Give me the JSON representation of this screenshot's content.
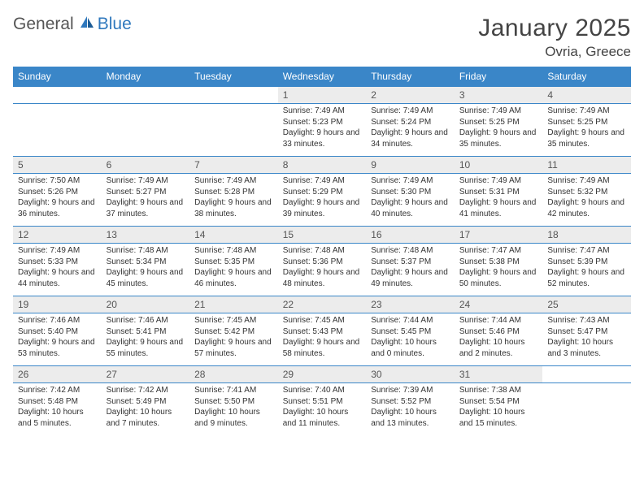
{
  "brand": {
    "part1": "General",
    "part2": "Blue"
  },
  "title": "January 2025",
  "location": "Ovria, Greece",
  "dayNames": [
    "Sunday",
    "Monday",
    "Tuesday",
    "Wednesday",
    "Thursday",
    "Friday",
    "Saturday"
  ],
  "colors": {
    "primary": "#3a86c8",
    "headerText": "#ffffff",
    "daynumBg": "#ececec",
    "bodyText": "#333333",
    "titleText": "#444444"
  },
  "weeks": [
    [
      null,
      null,
      null,
      {
        "n": "1",
        "sr": "7:49 AM",
        "ss": "5:23 PM",
        "dl": "9 hours and 33 minutes."
      },
      {
        "n": "2",
        "sr": "7:49 AM",
        "ss": "5:24 PM",
        "dl": "9 hours and 34 minutes."
      },
      {
        "n": "3",
        "sr": "7:49 AM",
        "ss": "5:25 PM",
        "dl": "9 hours and 35 minutes."
      },
      {
        "n": "4",
        "sr": "7:49 AM",
        "ss": "5:25 PM",
        "dl": "9 hours and 35 minutes."
      }
    ],
    [
      {
        "n": "5",
        "sr": "7:50 AM",
        "ss": "5:26 PM",
        "dl": "9 hours and 36 minutes."
      },
      {
        "n": "6",
        "sr": "7:49 AM",
        "ss": "5:27 PM",
        "dl": "9 hours and 37 minutes."
      },
      {
        "n": "7",
        "sr": "7:49 AM",
        "ss": "5:28 PM",
        "dl": "9 hours and 38 minutes."
      },
      {
        "n": "8",
        "sr": "7:49 AM",
        "ss": "5:29 PM",
        "dl": "9 hours and 39 minutes."
      },
      {
        "n": "9",
        "sr": "7:49 AM",
        "ss": "5:30 PM",
        "dl": "9 hours and 40 minutes."
      },
      {
        "n": "10",
        "sr": "7:49 AM",
        "ss": "5:31 PM",
        "dl": "9 hours and 41 minutes."
      },
      {
        "n": "11",
        "sr": "7:49 AM",
        "ss": "5:32 PM",
        "dl": "9 hours and 42 minutes."
      }
    ],
    [
      {
        "n": "12",
        "sr": "7:49 AM",
        "ss": "5:33 PM",
        "dl": "9 hours and 44 minutes."
      },
      {
        "n": "13",
        "sr": "7:48 AM",
        "ss": "5:34 PM",
        "dl": "9 hours and 45 minutes."
      },
      {
        "n": "14",
        "sr": "7:48 AM",
        "ss": "5:35 PM",
        "dl": "9 hours and 46 minutes."
      },
      {
        "n": "15",
        "sr": "7:48 AM",
        "ss": "5:36 PM",
        "dl": "9 hours and 48 minutes."
      },
      {
        "n": "16",
        "sr": "7:48 AM",
        "ss": "5:37 PM",
        "dl": "9 hours and 49 minutes."
      },
      {
        "n": "17",
        "sr": "7:47 AM",
        "ss": "5:38 PM",
        "dl": "9 hours and 50 minutes."
      },
      {
        "n": "18",
        "sr": "7:47 AM",
        "ss": "5:39 PM",
        "dl": "9 hours and 52 minutes."
      }
    ],
    [
      {
        "n": "19",
        "sr": "7:46 AM",
        "ss": "5:40 PM",
        "dl": "9 hours and 53 minutes."
      },
      {
        "n": "20",
        "sr": "7:46 AM",
        "ss": "5:41 PM",
        "dl": "9 hours and 55 minutes."
      },
      {
        "n": "21",
        "sr": "7:45 AM",
        "ss": "5:42 PM",
        "dl": "9 hours and 57 minutes."
      },
      {
        "n": "22",
        "sr": "7:45 AM",
        "ss": "5:43 PM",
        "dl": "9 hours and 58 minutes."
      },
      {
        "n": "23",
        "sr": "7:44 AM",
        "ss": "5:45 PM",
        "dl": "10 hours and 0 minutes."
      },
      {
        "n": "24",
        "sr": "7:44 AM",
        "ss": "5:46 PM",
        "dl": "10 hours and 2 minutes."
      },
      {
        "n": "25",
        "sr": "7:43 AM",
        "ss": "5:47 PM",
        "dl": "10 hours and 3 minutes."
      }
    ],
    [
      {
        "n": "26",
        "sr": "7:42 AM",
        "ss": "5:48 PM",
        "dl": "10 hours and 5 minutes."
      },
      {
        "n": "27",
        "sr": "7:42 AM",
        "ss": "5:49 PM",
        "dl": "10 hours and 7 minutes."
      },
      {
        "n": "28",
        "sr": "7:41 AM",
        "ss": "5:50 PM",
        "dl": "10 hours and 9 minutes."
      },
      {
        "n": "29",
        "sr": "7:40 AM",
        "ss": "5:51 PM",
        "dl": "10 hours and 11 minutes."
      },
      {
        "n": "30",
        "sr": "7:39 AM",
        "ss": "5:52 PM",
        "dl": "10 hours and 13 minutes."
      },
      {
        "n": "31",
        "sr": "7:38 AM",
        "ss": "5:54 PM",
        "dl": "10 hours and 15 minutes."
      },
      null
    ]
  ],
  "labels": {
    "sunrise": "Sunrise: ",
    "sunset": "Sunset: ",
    "daylight": "Daylight: "
  }
}
